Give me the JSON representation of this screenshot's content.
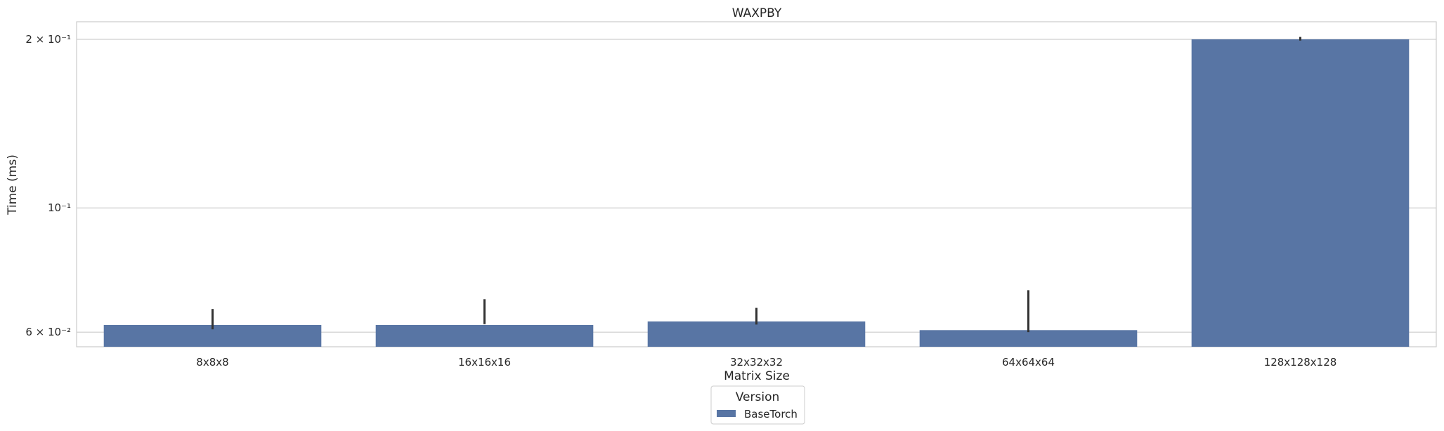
{
  "chart_data": {
    "type": "bar",
    "title": "WAXPBY",
    "xlabel": "Matrix Size",
    "ylabel": "Time (ms)",
    "yscale": "log",
    "ylim": [
      0.0565,
      0.215
    ],
    "grid": "horizontal",
    "categories": [
      "8x8x8",
      "16x16x16",
      "32x32x32",
      "64x64x64",
      "128x128x128"
    ],
    "series": [
      {
        "name": "BaseTorch",
        "color": "#5875a4",
        "values": [
          0.0618,
          0.0618,
          0.0627,
          0.0605,
          0.2
        ],
        "err_low": [
          0.0607,
          0.062,
          0.0619,
          0.06,
          0.199
        ],
        "err_high": [
          0.066,
          0.0687,
          0.0663,
          0.0713,
          0.202
        ]
      }
    ],
    "yticks": [
      {
        "value": 0.2,
        "label": "2 × 10⁻¹"
      },
      {
        "value": 0.1,
        "label": "10⁻¹"
      },
      {
        "value": 0.06,
        "label": "6 × 10⁻²"
      }
    ],
    "legend": {
      "title": "Version",
      "placement": "bottom-center",
      "entries": [
        "BaseTorch"
      ]
    }
  }
}
